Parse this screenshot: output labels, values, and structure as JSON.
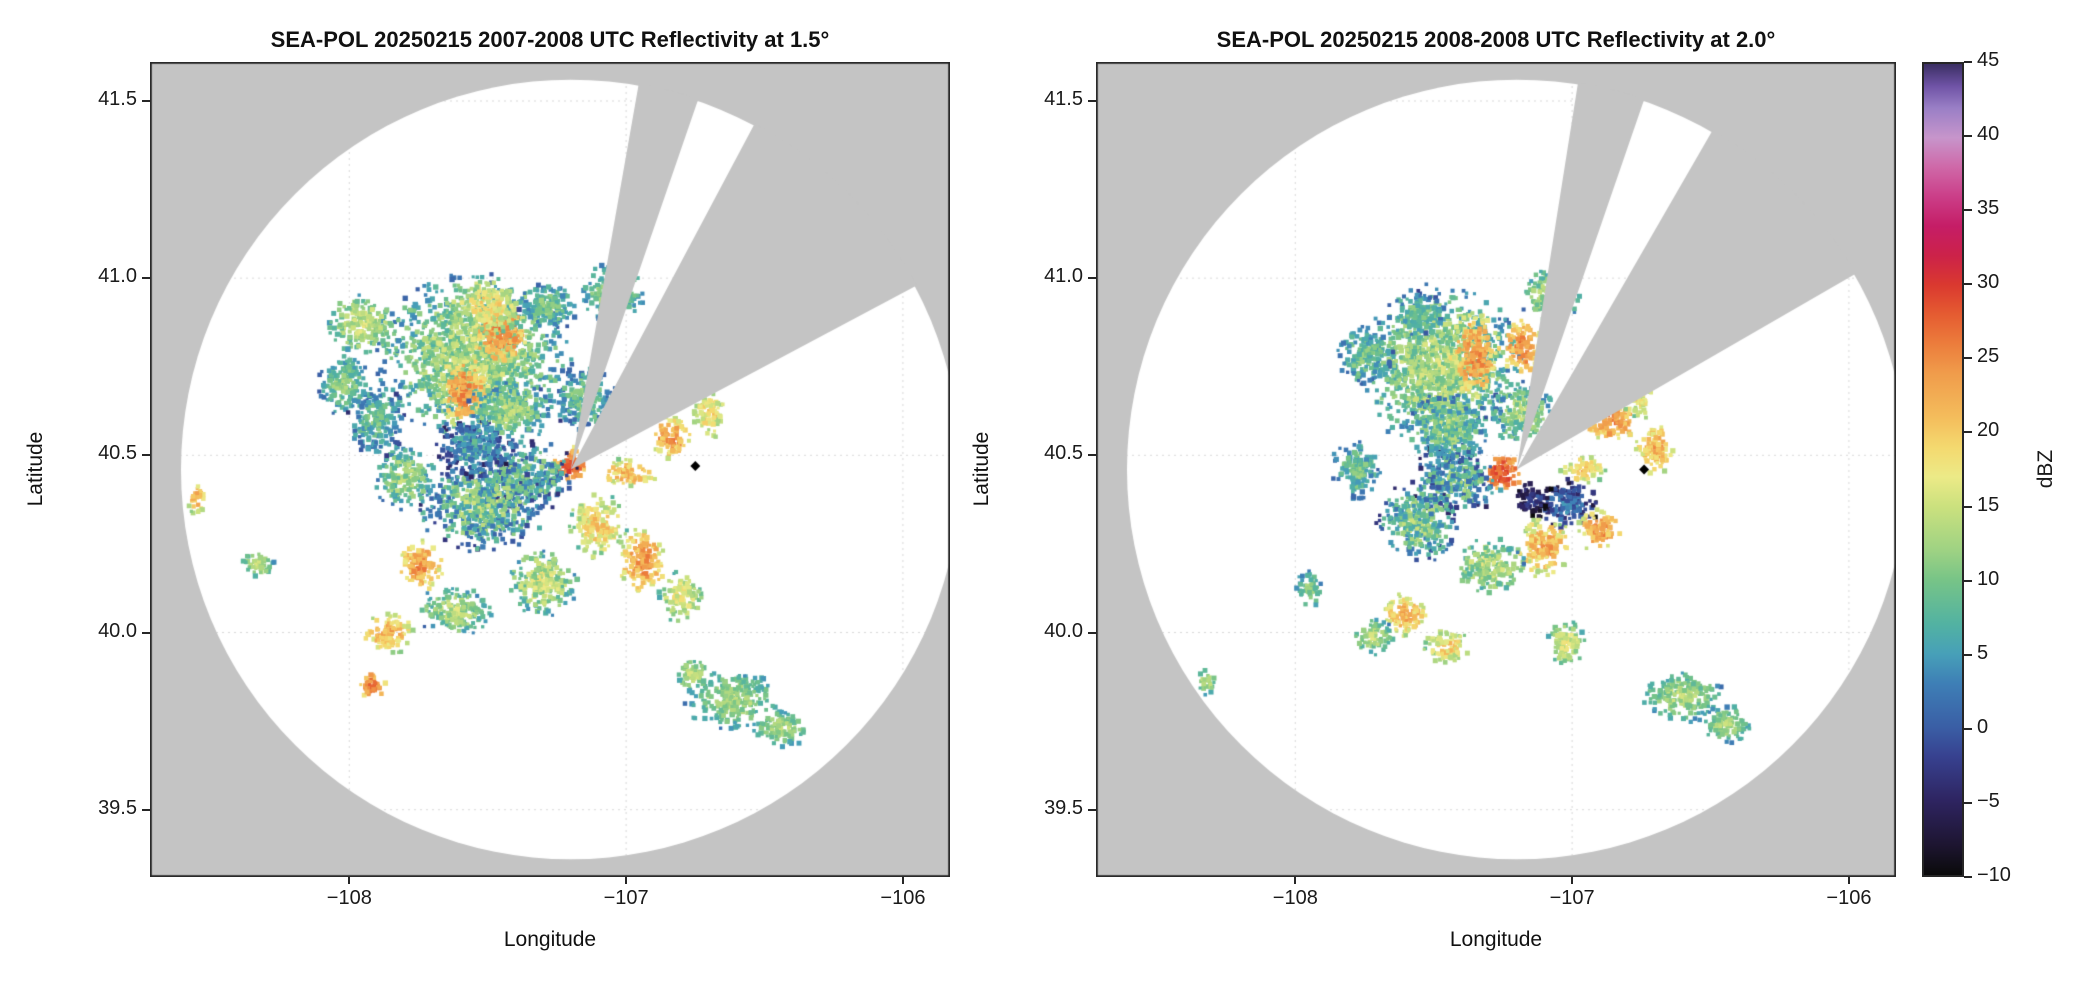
{
  "chart_data": {
    "type": "heatmap",
    "grid": true,
    "panels": [
      {
        "title": "SEA-POL 20250215 2007-2008 UTC Reflectivity at 1.5°",
        "xlabel": "Longitude",
        "ylabel": "Latitude",
        "seed": 20250215,
        "wedges": [
          {
            "az_start": 10,
            "az_end": 19
          },
          {
            "az_start": 28,
            "az_end": 62
          }
        ],
        "marker": {
          "lon": -106.75,
          "lat": 40.47
        },
        "echoes": [
          {
            "lon": -107.55,
            "lat": 40.78,
            "rx": 0.34,
            "ry": 0.22,
            "dbz": 13,
            "spread": 9
          },
          {
            "lon": -107.45,
            "lat": 40.84,
            "rx": 0.1,
            "ry": 0.09,
            "dbz": 25,
            "spread": 7
          },
          {
            "lon": -107.58,
            "lat": 40.68,
            "rx": 0.09,
            "ry": 0.1,
            "dbz": 24,
            "spread": 7
          },
          {
            "lon": -107.5,
            "lat": 40.92,
            "rx": 0.14,
            "ry": 0.08,
            "dbz": 18,
            "spread": 8
          },
          {
            "lon": -107.95,
            "lat": 40.87,
            "rx": 0.13,
            "ry": 0.08,
            "dbz": 15,
            "spread": 7
          },
          {
            "lon": -108.02,
            "lat": 40.7,
            "rx": 0.09,
            "ry": 0.09,
            "dbz": 11,
            "spread": 7
          },
          {
            "lon": -107.05,
            "lat": 40.96,
            "rx": 0.11,
            "ry": 0.08,
            "dbz": 12,
            "spread": 7
          },
          {
            "lon": -107.28,
            "lat": 40.92,
            "rx": 0.1,
            "ry": 0.07,
            "dbz": 10,
            "spread": 7
          },
          {
            "lon": -107.2,
            "lat": 40.47,
            "rx": 0.06,
            "ry": 0.05,
            "dbz": 28,
            "spread": 6
          },
          {
            "lon": -107.36,
            "lat": 40.44,
            "rx": 0.18,
            "ry": 0.1,
            "dbz": 8,
            "spread": 13
          },
          {
            "lon": -107.52,
            "lat": 40.36,
            "rx": 0.22,
            "ry": 0.13,
            "dbz": 10,
            "spread": 13
          },
          {
            "lon": -107.55,
            "lat": 40.52,
            "rx": 0.14,
            "ry": 0.09,
            "dbz": 5,
            "spread": 9
          },
          {
            "lon": -107.8,
            "lat": 40.44,
            "rx": 0.11,
            "ry": 0.09,
            "dbz": 12,
            "spread": 8
          },
          {
            "lon": -107.42,
            "lat": 40.62,
            "rx": 0.15,
            "ry": 0.09,
            "dbz": 12,
            "spread": 9
          },
          {
            "lon": -107.15,
            "lat": 40.66,
            "rx": 0.11,
            "ry": 0.09,
            "dbz": 10,
            "spread": 9
          },
          {
            "lon": -107.9,
            "lat": 40.6,
            "rx": 0.1,
            "ry": 0.1,
            "dbz": 9,
            "spread": 8
          },
          {
            "lon": -107.74,
            "lat": 40.19,
            "rx": 0.08,
            "ry": 0.07,
            "dbz": 24,
            "spread": 7
          },
          {
            "lon": -107.62,
            "lat": 40.06,
            "rx": 0.13,
            "ry": 0.07,
            "dbz": 13,
            "spread": 8
          },
          {
            "lon": -107.86,
            "lat": 40.0,
            "rx": 0.09,
            "ry": 0.06,
            "dbz": 22,
            "spread": 7
          },
          {
            "lon": -107.92,
            "lat": 39.85,
            "rx": 0.05,
            "ry": 0.04,
            "dbz": 26,
            "spread": 6
          },
          {
            "lon": -107.3,
            "lat": 40.14,
            "rx": 0.12,
            "ry": 0.09,
            "dbz": 15,
            "spread": 9
          },
          {
            "lon": -107.1,
            "lat": 40.3,
            "rx": 0.1,
            "ry": 0.09,
            "dbz": 19,
            "spread": 8
          },
          {
            "lon": -106.94,
            "lat": 40.2,
            "rx": 0.08,
            "ry": 0.09,
            "dbz": 24,
            "spread": 7
          },
          {
            "lon": -106.8,
            "lat": 40.1,
            "rx": 0.08,
            "ry": 0.07,
            "dbz": 17,
            "spread": 7
          },
          {
            "lon": -106.99,
            "lat": 40.45,
            "rx": 0.1,
            "ry": 0.04,
            "dbz": 22,
            "spread": 7
          },
          {
            "lon": -106.84,
            "lat": 40.55,
            "rx": 0.07,
            "ry": 0.06,
            "dbz": 24,
            "spread": 7
          },
          {
            "lon": -106.7,
            "lat": 40.62,
            "rx": 0.06,
            "ry": 0.07,
            "dbz": 19,
            "spread": 7
          },
          {
            "lon": -106.62,
            "lat": 39.81,
            "rx": 0.16,
            "ry": 0.08,
            "dbz": 13,
            "spread": 6
          },
          {
            "lon": -106.44,
            "lat": 39.73,
            "rx": 0.1,
            "ry": 0.05,
            "dbz": 13,
            "spread": 5
          },
          {
            "lon": -106.76,
            "lat": 39.88,
            "rx": 0.06,
            "ry": 0.05,
            "dbz": 14,
            "spread": 5
          },
          {
            "lon": -108.55,
            "lat": 40.38,
            "rx": 0.035,
            "ry": 0.045,
            "dbz": 22,
            "spread": 6
          },
          {
            "lon": -108.33,
            "lat": 40.19,
            "rx": 0.06,
            "ry": 0.04,
            "dbz": 14,
            "spread": 5
          }
        ]
      },
      {
        "title": "SEA-POL 20250215 2008-2008 UTC Reflectivity at 2.0°",
        "xlabel": "Longitude",
        "ylabel": "Latitude",
        "seed": 20250216,
        "wedges": [
          {
            "az_start": 9,
            "az_end": 19
          },
          {
            "az_start": 30,
            "az_end": 60
          }
        ],
        "marker": {
          "lon": -106.74,
          "lat": 40.46
        },
        "echoes": [
          {
            "lon": -107.48,
            "lat": 40.75,
            "rx": 0.28,
            "ry": 0.22,
            "dbz": 13,
            "spread": 9
          },
          {
            "lon": -107.35,
            "lat": 40.78,
            "rx": 0.09,
            "ry": 0.12,
            "dbz": 24,
            "spread": 7
          },
          {
            "lon": -107.18,
            "lat": 40.8,
            "rx": 0.07,
            "ry": 0.08,
            "dbz": 25,
            "spread": 7
          },
          {
            "lon": -107.08,
            "lat": 40.95,
            "rx": 0.1,
            "ry": 0.08,
            "dbz": 13,
            "spread": 7
          },
          {
            "lon": -107.55,
            "lat": 40.9,
            "rx": 0.09,
            "ry": 0.06,
            "dbz": 10,
            "spread": 7
          },
          {
            "lon": -107.75,
            "lat": 40.78,
            "rx": 0.1,
            "ry": 0.08,
            "dbz": 10,
            "spread": 8
          },
          {
            "lon": -107.25,
            "lat": 40.45,
            "rx": 0.07,
            "ry": 0.05,
            "dbz": 29,
            "spread": 6
          },
          {
            "lon": -107.42,
            "lat": 40.43,
            "rx": 0.16,
            "ry": 0.1,
            "dbz": 8,
            "spread": 13
          },
          {
            "lon": -107.02,
            "lat": 40.36,
            "rx": 0.11,
            "ry": 0.07,
            "dbz": 2,
            "spread": 8
          },
          {
            "lon": -107.14,
            "lat": 40.38,
            "rx": 0.07,
            "ry": 0.05,
            "dbz": -2,
            "spread": 6
          },
          {
            "lon": -106.9,
            "lat": 40.29,
            "rx": 0.08,
            "ry": 0.06,
            "dbz": 24,
            "spread": 7
          },
          {
            "lon": -107.1,
            "lat": 40.24,
            "rx": 0.1,
            "ry": 0.08,
            "dbz": 22,
            "spread": 8
          },
          {
            "lon": -107.3,
            "lat": 40.19,
            "rx": 0.12,
            "ry": 0.08,
            "dbz": 14,
            "spread": 9
          },
          {
            "lon": -107.56,
            "lat": 40.31,
            "rx": 0.14,
            "ry": 0.11,
            "dbz": 10,
            "spread": 12
          },
          {
            "lon": -107.78,
            "lat": 40.46,
            "rx": 0.09,
            "ry": 0.08,
            "dbz": 10,
            "spread": 8
          },
          {
            "lon": -107.45,
            "lat": 40.58,
            "rx": 0.14,
            "ry": 0.1,
            "dbz": 11,
            "spread": 10
          },
          {
            "lon": -107.18,
            "lat": 40.62,
            "rx": 0.11,
            "ry": 0.09,
            "dbz": 12,
            "spread": 9
          },
          {
            "lon": -107.6,
            "lat": 40.05,
            "rx": 0.08,
            "ry": 0.06,
            "dbz": 22,
            "spread": 7
          },
          {
            "lon": -107.45,
            "lat": 39.96,
            "rx": 0.08,
            "ry": 0.05,
            "dbz": 19,
            "spread": 7
          },
          {
            "lon": -107.72,
            "lat": 39.99,
            "rx": 0.07,
            "ry": 0.05,
            "dbz": 14,
            "spread": 6
          },
          {
            "lon": -107.02,
            "lat": 39.97,
            "rx": 0.07,
            "ry": 0.06,
            "dbz": 16,
            "spread": 6
          },
          {
            "lon": -106.86,
            "lat": 40.6,
            "rx": 0.1,
            "ry": 0.06,
            "dbz": 25,
            "spread": 7
          },
          {
            "lon": -106.7,
            "lat": 40.52,
            "rx": 0.07,
            "ry": 0.07,
            "dbz": 22,
            "spread": 7
          },
          {
            "lon": -106.76,
            "lat": 40.67,
            "rx": 0.06,
            "ry": 0.07,
            "dbz": 18,
            "spread": 7
          },
          {
            "lon": -106.96,
            "lat": 40.46,
            "rx": 0.08,
            "ry": 0.04,
            "dbz": 20,
            "spread": 7
          },
          {
            "lon": -106.6,
            "lat": 39.82,
            "rx": 0.14,
            "ry": 0.07,
            "dbz": 13,
            "spread": 6
          },
          {
            "lon": -106.44,
            "lat": 39.74,
            "rx": 0.09,
            "ry": 0.05,
            "dbz": 13,
            "spread": 5
          },
          {
            "lon": -107.95,
            "lat": 40.12,
            "rx": 0.05,
            "ry": 0.05,
            "dbz": 12,
            "spread": 6
          },
          {
            "lon": -108.32,
            "lat": 39.86,
            "rx": 0.035,
            "ry": 0.035,
            "dbz": 14,
            "spread": 5
          }
        ]
      }
    ],
    "axes": {
      "xlim": [
        -108.72,
        -105.83
      ],
      "ylim": [
        39.31,
        41.61
      ],
      "xticks": [
        {
          "v": -108,
          "label": "−108"
        },
        {
          "v": -107,
          "label": "−107"
        },
        {
          "v": -106,
          "label": "−106"
        }
      ],
      "yticks": [
        {
          "v": 41.5,
          "label": "41.5"
        },
        {
          "v": 41.0,
          "label": "41.0"
        },
        {
          "v": 40.5,
          "label": "40.5"
        },
        {
          "v": 40.0,
          "label": "40.0"
        },
        {
          "v": 39.5,
          "label": "39.5"
        }
      ]
    },
    "radar": {
      "lon": -107.2,
      "lat": 40.46,
      "radius_deg_lat": 1.1
    },
    "colorbar": {
      "label": "dBZ",
      "min": -10,
      "max": 45,
      "ticks": [
        {
          "v": 45,
          "label": "45"
        },
        {
          "v": 40,
          "label": "40"
        },
        {
          "v": 35,
          "label": "35"
        },
        {
          "v": 30,
          "label": "30"
        },
        {
          "v": 25,
          "label": "25"
        },
        {
          "v": 20,
          "label": "20"
        },
        {
          "v": 15,
          "label": "15"
        },
        {
          "v": 10,
          "label": "10"
        },
        {
          "v": 5,
          "label": "5"
        },
        {
          "v": 0,
          "label": "0"
        },
        {
          "v": -5,
          "label": "−5"
        },
        {
          "v": -10,
          "label": "−10"
        }
      ],
      "stops": [
        {
          "v": -10,
          "c": "#0a0a0a"
        },
        {
          "v": -8,
          "c": "#1d1530"
        },
        {
          "v": -5,
          "c": "#2e2460"
        },
        {
          "v": -2,
          "c": "#37418f"
        },
        {
          "v": 0,
          "c": "#3a5ea5"
        },
        {
          "v": 3,
          "c": "#3e7fb6"
        },
        {
          "v": 5,
          "c": "#47a0b8"
        },
        {
          "v": 7,
          "c": "#52b2a2"
        },
        {
          "v": 10,
          "c": "#77c487"
        },
        {
          "v": 12,
          "c": "#9ed283"
        },
        {
          "v": 15,
          "c": "#cbe17e"
        },
        {
          "v": 17,
          "c": "#ecea87"
        },
        {
          "v": 19,
          "c": "#f4d96f"
        },
        {
          "v": 21,
          "c": "#f4bd5c"
        },
        {
          "v": 24,
          "c": "#f09c4b"
        },
        {
          "v": 26,
          "c": "#ec7d3c"
        },
        {
          "v": 28,
          "c": "#e55c31"
        },
        {
          "v": 30,
          "c": "#da392f"
        },
        {
          "v": 32,
          "c": "#cc2249"
        },
        {
          "v": 34,
          "c": "#c51d66"
        },
        {
          "v": 36,
          "c": "#cb3e88"
        },
        {
          "v": 38,
          "c": "#cf68a8"
        },
        {
          "v": 40,
          "c": "#c795cb"
        },
        {
          "v": 42,
          "c": "#9a7fc6"
        },
        {
          "v": 43.5,
          "c": "#6f53a6"
        },
        {
          "v": 45,
          "c": "#3b2f63"
        }
      ]
    },
    "colors": {
      "nodata": "#c4c4c4",
      "coverage": "#ffffff",
      "marker": "#000000",
      "spine": "#262626"
    }
  }
}
